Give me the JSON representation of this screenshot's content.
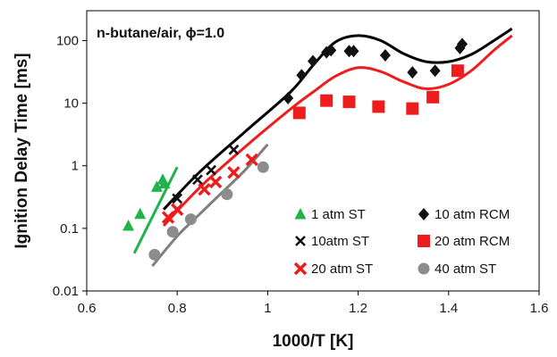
{
  "chart_data": {
    "type": "scatter",
    "title": "",
    "annotation": "n-butane/air, ϕ=1.0",
    "xlabel": "1000/T [K]",
    "ylabel": "Ignition Delay Time [ms]",
    "xlim": [
      0.6,
      1.6
    ],
    "ylim": [
      0.01,
      300
    ],
    "yscale": "log",
    "x_ticks": [
      0.6,
      0.8,
      1.0,
      1.2,
      1.4,
      1.6
    ],
    "x_tick_labels": [
      "0.6",
      "0.8",
      "1",
      "1.2",
      "1.4",
      "1.6"
    ],
    "y_ticks": [
      0.01,
      0.1,
      1,
      10,
      100
    ],
    "y_tick_labels": [
      "0.01",
      "0.1",
      "1",
      "10",
      "100"
    ],
    "grid": false,
    "legend_position": "bottom-right",
    "series": [
      {
        "name": "1 atm ST",
        "marker": "triangle",
        "color": "#21b24b",
        "points": [
          [
            0.692,
            0.11
          ],
          [
            0.718,
            0.17
          ],
          [
            0.755,
            0.46
          ],
          [
            0.768,
            0.6
          ],
          [
            0.772,
            0.52
          ]
        ],
        "fit": [
          [
            0.705,
            0.04
          ],
          [
            0.8,
            0.95
          ]
        ]
      },
      {
        "name": "10 atm RCM",
        "marker": "diamond",
        "color": "#111111",
        "points": [
          [
            1.045,
            12
          ],
          [
            1.075,
            28
          ],
          [
            1.1,
            47
          ],
          [
            1.13,
            65
          ],
          [
            1.14,
            70
          ],
          [
            1.18,
            68
          ],
          [
            1.19,
            68
          ],
          [
            1.26,
            58
          ],
          [
            1.32,
            31
          ],
          [
            1.37,
            33
          ],
          [
            1.425,
            76
          ],
          [
            1.43,
            88
          ]
        ]
      },
      {
        "name": "10atm ST",
        "marker": "x",
        "color": "#111111",
        "points": [
          [
            0.8,
            0.3
          ],
          [
            0.845,
            0.6
          ],
          [
            0.875,
            0.85
          ],
          [
            0.925,
            1.8
          ]
        ]
      },
      {
        "name": "20 atm RCM",
        "marker": "square",
        "color": "#ee1c1c",
        "points": [
          [
            1.07,
            7
          ],
          [
            1.13,
            11
          ],
          [
            1.18,
            10.5
          ],
          [
            1.245,
            8.8
          ],
          [
            1.32,
            8.2
          ],
          [
            1.365,
            12.5
          ],
          [
            1.42,
            33
          ]
        ]
      },
      {
        "name": "20 atm ST",
        "marker": "x",
        "color": "#ee1c1c",
        "points": [
          [
            0.78,
            0.15
          ],
          [
            0.8,
            0.2
          ],
          [
            0.86,
            0.42
          ],
          [
            0.885,
            0.55
          ],
          [
            0.925,
            0.78
          ],
          [
            0.965,
            1.25
          ]
        ]
      },
      {
        "name": "40 atm ST",
        "marker": "circle",
        "color": "#8c8c8c",
        "points": [
          [
            0.75,
            0.038
          ],
          [
            0.79,
            0.088
          ],
          [
            0.83,
            0.14
          ],
          [
            0.91,
            0.35
          ],
          [
            0.99,
            0.95
          ]
        ]
      }
    ],
    "model_curves": [
      {
        "color": "#000000",
        "points": [
          [
            0.77,
            0.2
          ],
          [
            0.85,
            0.8
          ],
          [
            0.95,
            3.5
          ],
          [
            1.05,
            15
          ],
          [
            1.1,
            40
          ],
          [
            1.15,
            95
          ],
          [
            1.2,
            120
          ],
          [
            1.25,
            100
          ],
          [
            1.3,
            62
          ],
          [
            1.35,
            46
          ],
          [
            1.4,
            46
          ],
          [
            1.45,
            60
          ],
          [
            1.5,
            100
          ],
          [
            1.54,
            155
          ]
        ]
      },
      {
        "color": "#ee1c1c",
        "points": [
          [
            0.77,
            0.11
          ],
          [
            0.85,
            0.45
          ],
          [
            0.95,
            2
          ],
          [
            1.05,
            8
          ],
          [
            1.1,
            15
          ],
          [
            1.15,
            27
          ],
          [
            1.2,
            37
          ],
          [
            1.25,
            32
          ],
          [
            1.3,
            22
          ],
          [
            1.35,
            17
          ],
          [
            1.4,
            20
          ],
          [
            1.45,
            33
          ],
          [
            1.5,
            70
          ],
          [
            1.54,
            120
          ]
        ]
      },
      {
        "color": "#7f7f7f",
        "points": [
          [
            0.745,
            0.025
          ],
          [
            0.8,
            0.075
          ],
          [
            0.85,
            0.17
          ],
          [
            0.9,
            0.38
          ],
          [
            0.95,
            0.85
          ],
          [
            1.0,
            2.2
          ]
        ]
      }
    ]
  }
}
